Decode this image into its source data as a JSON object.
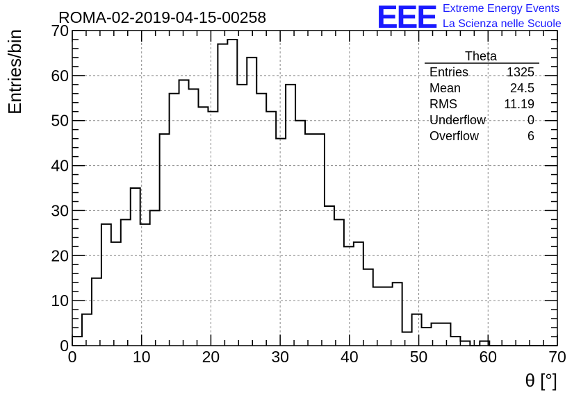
{
  "header": {
    "title": "ROMA-02-2019-04-15-00258",
    "logo_text": "EEE",
    "logo_line1": "Extreme Energy Events",
    "logo_line2": "La Scienza nelle Scuole"
  },
  "stats_box": {
    "title": "Theta",
    "rows": [
      {
        "label": "Entries",
        "value": "1325"
      },
      {
        "label": "Mean",
        "value": "24.5"
      },
      {
        "label": "RMS",
        "value": "11.19"
      },
      {
        "label": "Underflow",
        "value": "0"
      },
      {
        "label": "Overflow",
        "value": "6"
      }
    ]
  },
  "chart_data": {
    "type": "bar",
    "style": "step-histogram",
    "xlabel": "θ [°]",
    "ylabel": "Entries/bin",
    "xlim": [
      0,
      70
    ],
    "ylim": [
      0,
      70
    ],
    "xticks": [
      0,
      10,
      20,
      30,
      40,
      50,
      60,
      70
    ],
    "yticks": [
      0,
      10,
      20,
      30,
      40,
      50,
      60,
      70
    ],
    "grid": true,
    "bin_edges_start": 0,
    "bin_width": 1.4,
    "values": [
      2,
      7,
      15,
      27,
      23,
      28,
      35,
      27,
      30,
      47,
      56,
      59,
      57,
      53,
      52,
      67,
      68,
      58,
      64,
      56,
      52,
      46,
      58,
      50,
      47,
      47,
      31,
      28,
      22,
      23,
      17,
      13,
      13,
      14,
      3,
      7,
      4,
      5,
      5,
      2,
      1,
      0,
      1,
      0,
      0,
      0,
      0,
      0,
      0,
      0
    ],
    "colors": {
      "line": "#000000",
      "grid": "#888888",
      "logo": "#1a1aff"
    }
  }
}
